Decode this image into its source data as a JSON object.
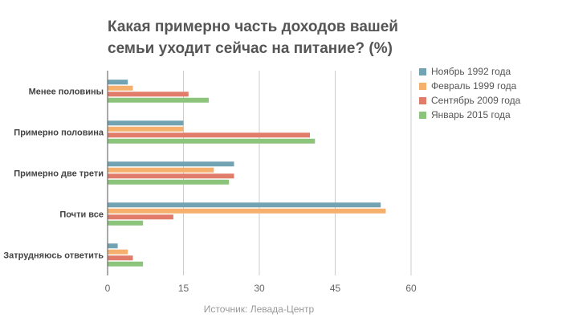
{
  "chart_data": {
    "type": "bar",
    "orientation": "horizontal",
    "title": "Какая примерно часть доходов вашей семьи уходит сейчас на питание? (%)",
    "title_lines": [
      "Какая примерно часть доходов вашей",
      "семьи уходит сейчас на питание? (%)"
    ],
    "categories": [
      "Менее половины",
      "Примерно половина",
      "Примерно две трети",
      "Почти все",
      "Затрудняюсь ответить"
    ],
    "series": [
      {
        "name": "Ноябрь 1992 года",
        "color": "#72a3b3",
        "values": [
          4,
          15,
          25,
          54,
          2
        ]
      },
      {
        "name": "Февраль 1999 года",
        "color": "#f5b06d",
        "values": [
          5,
          15,
          21,
          55,
          4
        ]
      },
      {
        "name": "Сентябрь 2009 года",
        "color": "#e07c69",
        "values": [
          16,
          40,
          25,
          13,
          5
        ]
      },
      {
        "name": "Январь 2015 года",
        "color": "#8cc47b",
        "values": [
          20,
          41,
          24,
          7,
          7
        ]
      }
    ],
    "xlim": [
      0,
      60
    ],
    "xticks": [
      "0",
      "15",
      "30",
      "45",
      "60"
    ],
    "grid": true,
    "legend_position": "top-right",
    "source": "Источник: Левада-Центр"
  }
}
